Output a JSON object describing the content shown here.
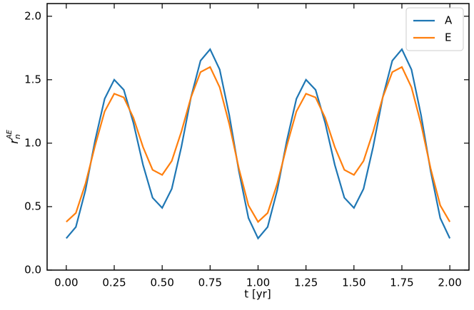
{
  "chart_data": {
    "type": "line",
    "xlabel": "t [yr]",
    "ylabel": {
      "base": "r",
      "sub": "n",
      "sup": "AE"
    },
    "x": [
      0,
      0.05,
      0.1,
      0.15,
      0.2,
      0.25,
      0.3,
      0.35,
      0.4,
      0.45,
      0.5,
      0.55,
      0.6,
      0.65,
      0.7,
      0.75,
      0.8,
      0.85,
      0.9,
      0.95,
      1,
      1.05,
      1.1,
      1.15,
      1.2,
      1.25,
      1.3,
      1.35,
      1.4,
      1.45,
      1.5,
      1.55,
      1.6,
      1.65,
      1.7,
      1.75,
      1.8,
      1.85,
      1.9,
      1.95,
      2
    ],
    "series": [
      {
        "name": "A",
        "color": "#1f77b4",
        "values": [
          0.25,
          0.34,
          0.63,
          1.02,
          1.35,
          1.5,
          1.42,
          1.16,
          0.83,
          0.57,
          0.49,
          0.64,
          0.97,
          1.36,
          1.65,
          1.74,
          1.58,
          1.22,
          0.78,
          0.41,
          0.25,
          0.34,
          0.63,
          1.02,
          1.35,
          1.5,
          1.42,
          1.16,
          0.83,
          0.57,
          0.49,
          0.64,
          0.97,
          1.36,
          1.65,
          1.74,
          1.58,
          1.22,
          0.78,
          0.41,
          0.25
        ]
      },
      {
        "name": "E",
        "color": "#ff7f0e",
        "values": [
          0.38,
          0.45,
          0.68,
          0.98,
          1.25,
          1.39,
          1.36,
          1.2,
          0.97,
          0.79,
          0.75,
          0.86,
          1.09,
          1.36,
          1.56,
          1.6,
          1.44,
          1.15,
          0.8,
          0.51,
          0.38,
          0.45,
          0.68,
          0.98,
          1.25,
          1.39,
          1.36,
          1.2,
          0.97,
          0.79,
          0.75,
          0.86,
          1.09,
          1.36,
          1.56,
          1.6,
          1.44,
          1.15,
          0.8,
          0.51,
          0.38
        ]
      }
    ],
    "xlim": [
      -0.1,
      2.1
    ],
    "ylim": [
      0,
      2.1
    ],
    "xticks": [
      {
        "value": 0,
        "label": "0.00"
      },
      0.25,
      {
        "value": 0.5,
        "label": "0.50"
      },
      0.75,
      {
        "value": 1,
        "label": "1.00"
      },
      1.25,
      {
        "value": 1.5,
        "label": "1.50"
      },
      1.75,
      {
        "value": 2,
        "label": "2.00"
      }
    ],
    "yticks": [
      {
        "value": 0,
        "label": "0.0"
      },
      0.5,
      {
        "value": 1,
        "label": "1.0"
      },
      1.5,
      {
        "value": 2,
        "label": "2.0"
      }
    ],
    "grid": false,
    "legend": "upper-right"
  }
}
